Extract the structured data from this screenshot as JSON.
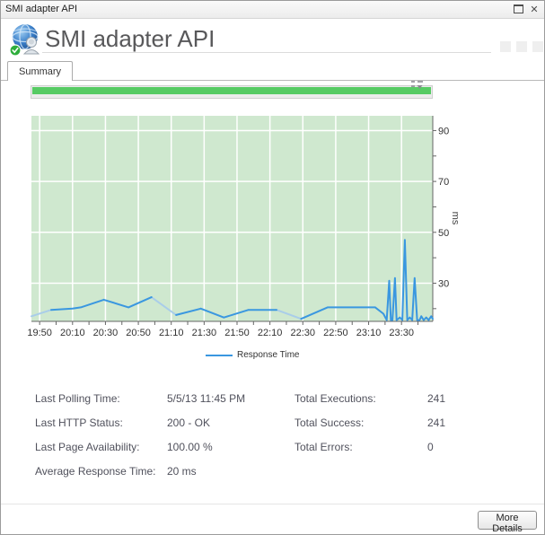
{
  "window": {
    "title": "SMI adapter API",
    "icons": {
      "maximize": "",
      "close": "✕"
    }
  },
  "header": {
    "title": "SMI adapter API"
  },
  "tabs": [
    {
      "label": "Summary"
    }
  ],
  "availability_bar": {
    "color": "#57cb64"
  },
  "chart_data": {
    "type": "line",
    "title": "",
    "xlabel": "",
    "ylabel": "ms",
    "plot_bg": "#cfe8cf",
    "grid_color": "#ffffff",
    "axis_color": "#666666",
    "tick_label_color": "#333333",
    "ylim": [
      15,
      95.8
    ],
    "t_range": [
      0,
      244
    ],
    "x_ticks": [
      {
        "t": 5,
        "label": "19:50"
      },
      {
        "t": 25,
        "label": "20:10"
      },
      {
        "t": 45,
        "label": "20:30"
      },
      {
        "t": 65,
        "label": "20:50"
      },
      {
        "t": 85,
        "label": "21:10"
      },
      {
        "t": 105,
        "label": "21:30"
      },
      {
        "t": 125,
        "label": "21:50"
      },
      {
        "t": 145,
        "label": "22:10"
      },
      {
        "t": 165,
        "label": "22:30"
      },
      {
        "t": 185,
        "label": "22:50"
      },
      {
        "t": 205,
        "label": "23:10"
      },
      {
        "t": 225,
        "label": "23:30"
      }
    ],
    "x_minor_step": 10,
    "y_ticks": [
      {
        "v": 30,
        "label": "30"
      },
      {
        "v": 50,
        "label": "50"
      },
      {
        "v": 70,
        "label": "70"
      },
      {
        "v": 90,
        "label": "90"
      }
    ],
    "y_minor_ticks": [
      20,
      40,
      60,
      80
    ],
    "legend_position": "bottom",
    "series": [
      {
        "name": "Response Time",
        "color": "#3a97e0",
        "light_color": "#a9cde9",
        "points": [
          [
            0,
            17,
            0
          ],
          [
            12,
            19.5,
            1
          ],
          [
            25,
            20,
            0
          ],
          [
            30,
            20.5,
            0
          ],
          [
            44,
            23.5,
            0
          ],
          [
            59,
            20.5,
            0
          ],
          [
            73,
            24.5,
            0
          ],
          [
            88,
            17.5,
            1
          ],
          [
            103,
            20,
            0
          ],
          [
            117,
            16.5,
            0
          ],
          [
            132,
            19.5,
            0
          ],
          [
            149,
            19.5,
            0
          ],
          [
            164,
            16,
            1
          ],
          [
            180,
            20.5,
            0
          ],
          [
            209,
            20.5,
            0
          ],
          [
            214,
            18,
            0
          ],
          [
            216,
            15.5,
            0
          ],
          [
            217.5,
            31,
            0
          ],
          [
            218.5,
            15.5,
            0
          ],
          [
            219.5,
            15.5,
            0
          ],
          [
            221,
            32,
            0
          ],
          [
            222,
            15.5,
            0
          ],
          [
            224,
            16.5,
            0
          ],
          [
            225.5,
            15.5,
            0
          ],
          [
            227,
            47,
            0
          ],
          [
            228.5,
            15.5,
            0
          ],
          [
            230,
            16.5,
            0
          ],
          [
            231.5,
            15.5,
            0
          ],
          [
            233,
            32,
            0
          ],
          [
            234.5,
            15.5,
            0
          ],
          [
            236,
            15.5,
            0
          ],
          [
            237,
            17,
            0
          ],
          [
            238.5,
            15.5,
            0
          ],
          [
            240,
            16.5,
            0
          ],
          [
            241.5,
            15.5,
            0
          ],
          [
            243,
            17,
            0
          ],
          [
            244,
            16,
            0
          ]
        ]
      }
    ]
  },
  "legend": {
    "label": "Response Time"
  },
  "stats": {
    "left": [
      {
        "label": "Last Polling Time:",
        "value": "5/5/13 11:45 PM"
      },
      {
        "label": "Last HTTP Status:",
        "value": "200 - OK"
      },
      {
        "label": "Last Page Availability:",
        "value": "100.00 %"
      },
      {
        "label": "Average Response Time:",
        "value": "20 ms"
      }
    ],
    "right": [
      {
        "label": "Total Executions:",
        "value": "241"
      },
      {
        "label": "Total Success:",
        "value": "241"
      },
      {
        "label": "Total Errors:",
        "value": "0"
      }
    ]
  },
  "footer": {
    "more_details_label": "More Details"
  }
}
